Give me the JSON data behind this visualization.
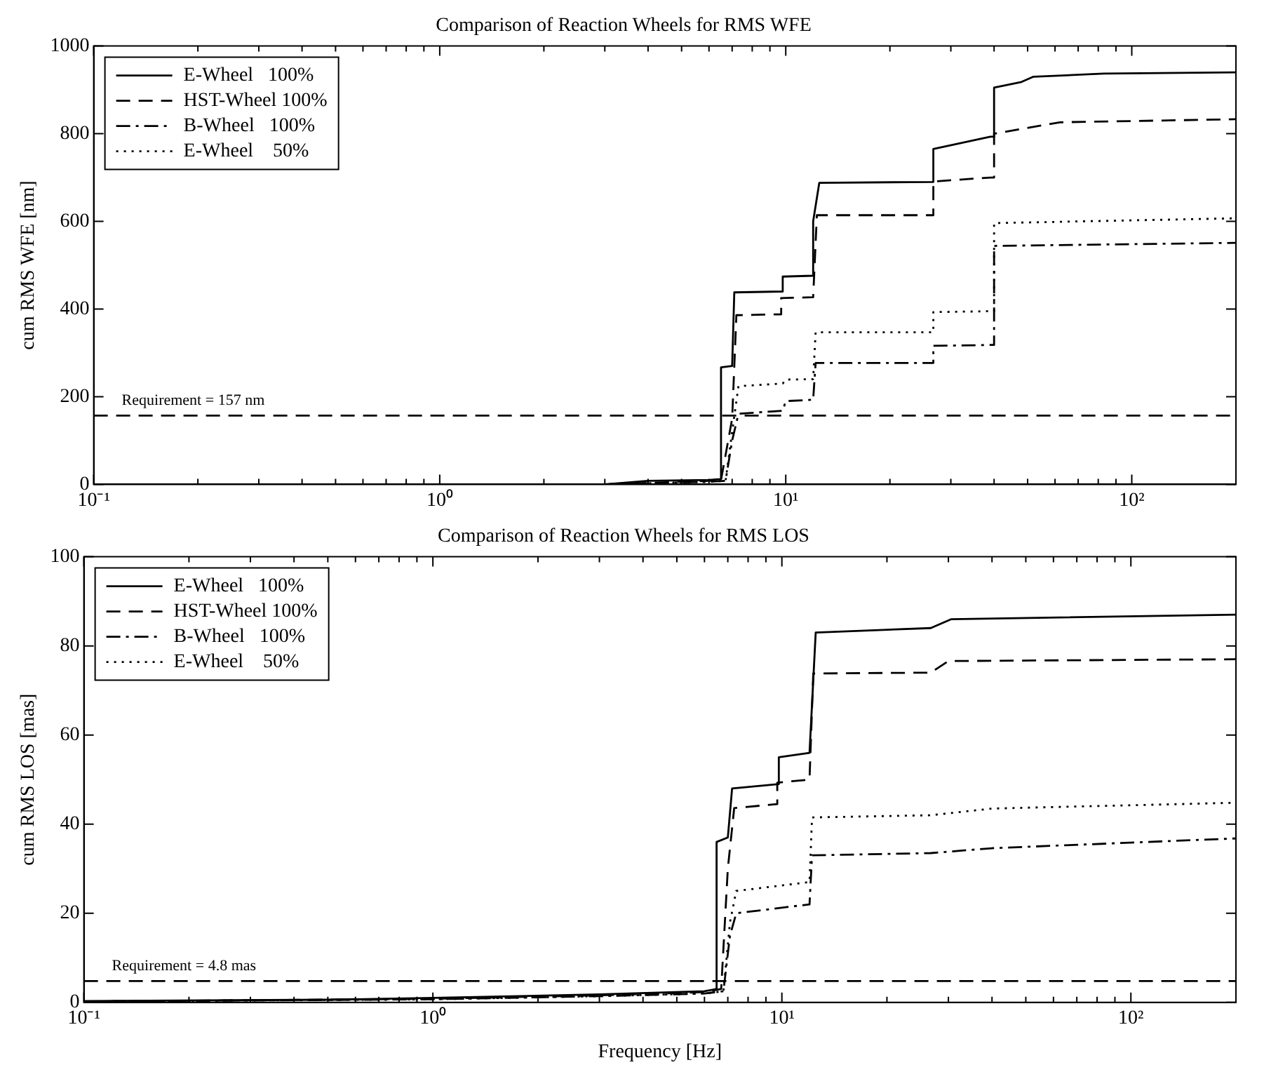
{
  "chart_data": [
    {
      "type": "line",
      "title": "Comparison of Reaction Wheels for RMS WFE",
      "ylabel": "cum RMS WFE [nm]",
      "log": "x",
      "grid": false,
      "legend": "top left",
      "marker": "none",
      "xlim": [
        0.1,
        200
      ],
      "ylim": [
        0,
        1000
      ],
      "xticks": [
        {
          "value": 0.1,
          "label": "10⁻¹"
        },
        {
          "value": 0.2,
          "label": null
        },
        {
          "value": 0.3,
          "label": null
        },
        {
          "value": 0.4,
          "label": null
        },
        {
          "value": 0.5,
          "label": null
        },
        {
          "value": 0.6,
          "label": null
        },
        {
          "value": 0.7,
          "label": null
        },
        {
          "value": 0.8,
          "label": null
        },
        {
          "value": 0.9,
          "label": null
        },
        {
          "value": 1,
          "label": "10⁰"
        },
        {
          "value": 2,
          "label": null
        },
        {
          "value": 3,
          "label": null
        },
        {
          "value": 4,
          "label": null
        },
        {
          "value": 5,
          "label": null
        },
        {
          "value": 6,
          "label": null
        },
        {
          "value": 7,
          "label": null
        },
        {
          "value": 8,
          "label": null
        },
        {
          "value": 9,
          "label": null
        },
        {
          "value": 10,
          "label": "10¹"
        },
        {
          "value": 20,
          "label": null
        },
        {
          "value": 30,
          "label": null
        },
        {
          "value": 40,
          "label": null
        },
        {
          "value": 50,
          "label": null
        },
        {
          "value": 60,
          "label": null
        },
        {
          "value": 70,
          "label": null
        },
        {
          "value": 80,
          "label": null
        },
        {
          "value": 90,
          "label": null
        },
        {
          "value": 100,
          "label": "10²"
        }
      ],
      "yticks": [
        0,
        200,
        400,
        600,
        800,
        1000
      ],
      "ref_lines": [
        {
          "axis": "y",
          "value": 157,
          "label": "Requirement = 157 nm",
          "line_style": "dashed",
          "color": "#000000"
        }
      ],
      "series": [
        {
          "name": "E-Wheel   100%",
          "color": "#000000",
          "line_style": "solid",
          "x": [
            0.1,
            3,
            4,
            6,
            6.5,
            6.5,
            7,
            7.1,
            9.8,
            9.8,
            12,
            12,
            12.5,
            26.7,
            26.7,
            39,
            40,
            40,
            48,
            52,
            83,
            200
          ],
          "values": [
            0,
            0,
            8,
            10,
            12,
            267,
            270,
            438,
            440,
            474,
            476,
            600,
            688,
            690,
            765,
            793,
            793,
            905,
            918,
            930,
            937,
            940
          ]
        },
        {
          "name": "HST-Wheel 100%",
          "color": "#000000",
          "line_style": "dashed",
          "x": [
            0.1,
            3,
            6,
            6.5,
            7,
            7.2,
            9.7,
            9.7,
            12,
            12.3,
            26.7,
            26.7,
            39,
            40,
            40,
            62,
            200
          ],
          "values": [
            0,
            0,
            8,
            10,
            150,
            386,
            388,
            425,
            427,
            614,
            614,
            691,
            700,
            700,
            800,
            826,
            833
          ]
        },
        {
          "name": "B-Wheel   100%",
          "color": "#000000",
          "line_style": "dashdot",
          "x": [
            0.1,
            3,
            6,
            6.7,
            7,
            7.3,
            9.8,
            10,
            12,
            12.2,
            26.7,
            26.7,
            39,
            40,
            40,
            200
          ],
          "values": [
            0,
            0,
            6,
            8,
            100,
            161,
            168,
            190,
            193,
            277,
            277,
            316,
            318,
            318,
            544,
            551
          ]
        },
        {
          "name": "E-Wheel    50%",
          "color": "#000000",
          "line_style": "dotted",
          "x": [
            0.1,
            3,
            6,
            6.7,
            7,
            7.3,
            9.8,
            10,
            12,
            12.2,
            26.7,
            26.7,
            39,
            40,
            40,
            200
          ],
          "values": [
            0,
            0,
            6,
            8,
            120,
            224,
            230,
            239,
            240,
            347,
            347,
            393,
            395,
            395,
            596,
            607
          ]
        }
      ]
    },
    {
      "type": "line",
      "title": "Comparison of Reaction Wheels for RMS LOS",
      "xlabel": "Frequency [Hz]",
      "ylabel": "cum RMS LOS [mas]",
      "log": "x",
      "grid": false,
      "legend": "top left",
      "marker": "none",
      "xlim": [
        0.1,
        200
      ],
      "ylim": [
        0,
        100
      ],
      "xticks": [
        {
          "value": 0.1,
          "label": "10⁻¹"
        },
        {
          "value": 0.2,
          "label": null
        },
        {
          "value": 0.3,
          "label": null
        },
        {
          "value": 0.4,
          "label": null
        },
        {
          "value": 0.5,
          "label": null
        },
        {
          "value": 0.6,
          "label": null
        },
        {
          "value": 0.7,
          "label": null
        },
        {
          "value": 0.8,
          "label": null
        },
        {
          "value": 0.9,
          "label": null
        },
        {
          "value": 1,
          "label": "10⁰"
        },
        {
          "value": 2,
          "label": null
        },
        {
          "value": 3,
          "label": null
        },
        {
          "value": 4,
          "label": null
        },
        {
          "value": 5,
          "label": null
        },
        {
          "value": 6,
          "label": null
        },
        {
          "value": 7,
          "label": null
        },
        {
          "value": 8,
          "label": null
        },
        {
          "value": 9,
          "label": null
        },
        {
          "value": 10,
          "label": "10¹"
        },
        {
          "value": 20,
          "label": null
        },
        {
          "value": 30,
          "label": null
        },
        {
          "value": 40,
          "label": null
        },
        {
          "value": 50,
          "label": null
        },
        {
          "value": 60,
          "label": null
        },
        {
          "value": 70,
          "label": null
        },
        {
          "value": 80,
          "label": null
        },
        {
          "value": 90,
          "label": null
        },
        {
          "value": 100,
          "label": "10²"
        }
      ],
      "yticks": [
        0,
        20,
        40,
        60,
        80,
        100
      ],
      "ref_lines": [
        {
          "axis": "y",
          "value": 4.8,
          "label": "Requirement = 4.8 mas",
          "line_style": "dashed",
          "color": "#000000"
        }
      ],
      "series": [
        {
          "name": "E-Wheel   100%",
          "color": "#000000",
          "line_style": "solid",
          "x": [
            0.1,
            0.5,
            1,
            3,
            6,
            6.5,
            6.5,
            7,
            7.2,
            9.8,
            9.8,
            12,
            12.5,
            26.7,
            30.6,
            200
          ],
          "values": [
            0.3,
            0.6,
            1,
            1.8,
            2.5,
            3,
            36,
            37,
            48,
            49,
            55,
            56,
            83,
            84,
            86,
            87
          ]
        },
        {
          "name": "HST-Wheel 100%",
          "color": "#000000",
          "line_style": "dashed",
          "x": [
            0.1,
            1,
            3,
            6,
            6.7,
            7,
            7.3,
            9.7,
            9.7,
            12,
            12.3,
            26.7,
            30,
            200
          ],
          "values": [
            0.2,
            0.8,
            1.6,
            2.3,
            3,
            30,
            43.6,
            44.5,
            49.3,
            50,
            73.8,
            74,
            76.6,
            77
          ]
        },
        {
          "name": "B-Wheel   100%",
          "color": "#000000",
          "line_style": "dashdot",
          "x": [
            0.1,
            1,
            3,
            6,
            6.8,
            7.1,
            7.4,
            12,
            12.2,
            26.7,
            40,
            200
          ],
          "values": [
            0.2,
            0.7,
            1.4,
            2,
            2.5,
            15,
            20,
            22,
            33,
            33.5,
            34.6,
            36.8
          ]
        },
        {
          "name": "E-Wheel    50%",
          "color": "#000000",
          "line_style": "dotted",
          "x": [
            0.1,
            1,
            3,
            6,
            6.8,
            7.1,
            7.4,
            12,
            12.2,
            26.7,
            40,
            200
          ],
          "values": [
            0.2,
            0.7,
            1.4,
            2,
            2.5,
            18,
            25,
            27,
            41.5,
            42,
            43.5,
            44.8
          ]
        }
      ]
    }
  ]
}
